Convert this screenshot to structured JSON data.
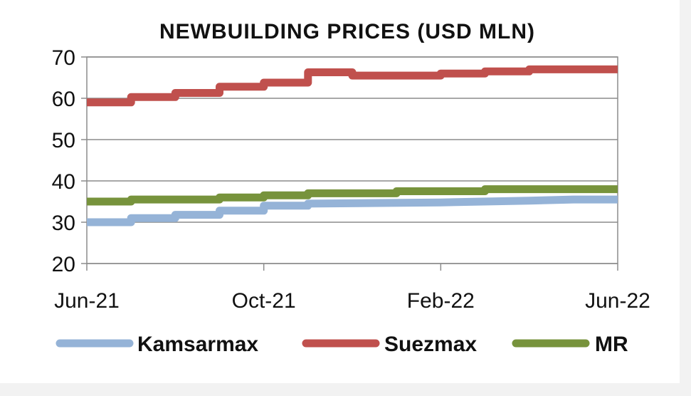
{
  "chart_data": {
    "type": "line",
    "title": "NEWBUILDING  PRICES (USD MLN)",
    "xlabel": "",
    "ylabel": "",
    "ylim": [
      20,
      70
    ],
    "yticks": [
      "20",
      "30",
      "40",
      "50",
      "60",
      "70"
    ],
    "xlim": [
      "2021-06",
      "2022-06"
    ],
    "xticks": [
      {
        "label": "Jun-21",
        "date": "2021-06"
      },
      {
        "label": "Oct-21",
        "date": "2021-10"
      },
      {
        "label": "Feb-22",
        "date": "2022-02"
      },
      {
        "label": "Jun-22",
        "date": "2022-06"
      }
    ],
    "grid": true,
    "legend_position": "bottom",
    "series": [
      {
        "name": "Kamsarmax",
        "color": "#95b3d7",
        "points": [
          [
            "2021-06",
            30
          ],
          [
            "2021-07",
            30
          ],
          [
            "2021-07",
            31
          ],
          [
            "2021-08",
            31
          ],
          [
            "2021-08",
            31.8
          ],
          [
            "2021-09",
            31.8
          ],
          [
            "2021-09",
            32.8
          ],
          [
            "2021-10",
            32.8
          ],
          [
            "2021-10",
            34
          ],
          [
            "2021-11",
            34
          ],
          [
            "2021-11",
            34.5
          ],
          [
            "2022-02",
            34.8
          ],
          [
            "2022-04",
            35.2
          ],
          [
            "2022-05",
            35.5
          ],
          [
            "2022-06",
            35.5
          ]
        ]
      },
      {
        "name": "Suezmax",
        "color": "#c0504d",
        "points": [
          [
            "2021-06",
            59
          ],
          [
            "2021-07",
            59
          ],
          [
            "2021-07",
            60.3
          ],
          [
            "2021-08",
            60.3
          ],
          [
            "2021-08",
            61.3
          ],
          [
            "2021-09",
            61.3
          ],
          [
            "2021-09",
            62.8
          ],
          [
            "2021-10",
            62.8
          ],
          [
            "2021-10",
            63.8
          ],
          [
            "2021-11",
            63.8
          ],
          [
            "2021-11",
            66.3
          ],
          [
            "2021-12",
            66.3
          ],
          [
            "2021-12",
            65.5
          ],
          [
            "2022-02",
            65.5
          ],
          [
            "2022-02",
            66
          ],
          [
            "2022-03",
            66
          ],
          [
            "2022-03",
            66.5
          ],
          [
            "2022-04",
            66.5
          ],
          [
            "2022-04",
            67
          ],
          [
            "2022-06",
            67
          ]
        ]
      },
      {
        "name": "MR",
        "color": "#77933c",
        "points": [
          [
            "2021-06",
            35
          ],
          [
            "2021-07",
            35
          ],
          [
            "2021-07",
            35.5
          ],
          [
            "2021-09",
            35.5
          ],
          [
            "2021-09",
            36
          ],
          [
            "2021-10",
            36
          ],
          [
            "2021-10",
            36.5
          ],
          [
            "2021-11",
            36.5
          ],
          [
            "2021-11",
            37
          ],
          [
            "2022-01",
            37
          ],
          [
            "2022-01",
            37.5
          ],
          [
            "2022-03",
            37.5
          ],
          [
            "2022-03",
            38
          ],
          [
            "2022-06",
            38
          ]
        ]
      }
    ]
  }
}
